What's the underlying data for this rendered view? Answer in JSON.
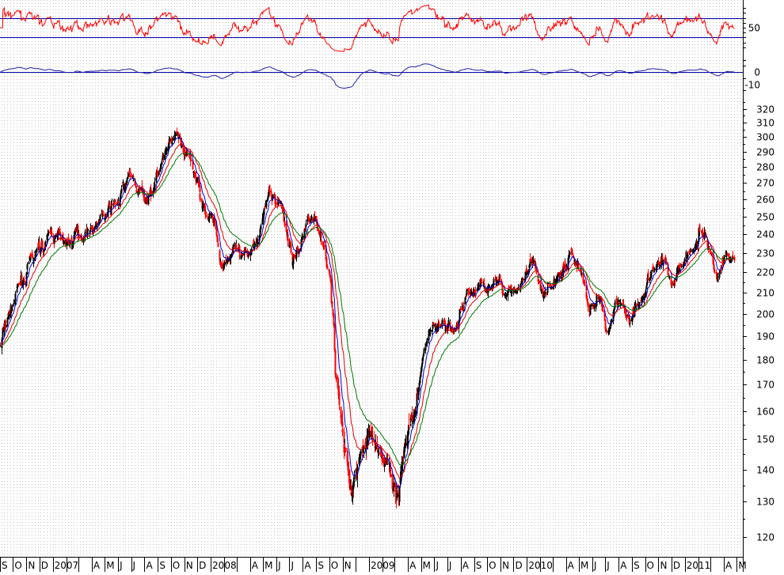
{
  "chart_data": {
    "type": "line",
    "title": "",
    "style": {
      "candle_up_color": "#000000",
      "candle_down_color": "#ff0000",
      "ma_fast_color": "#0000cc",
      "ma_mid_color": "#dd0000",
      "ma_slow_color": "#007700",
      "rsi_color": "#ff0000",
      "momentum_color": "#2222aa",
      "guide_line_color": "#0000aa",
      "grid_color": "#c0c0c0",
      "grid": true
    },
    "price_panel": {
      "scale": "log",
      "ylim": [
        115,
        328
      ],
      "ytick_labels": [
        120,
        130,
        140,
        150,
        160,
        170,
        180,
        190,
        200,
        210,
        220,
        230,
        240,
        250,
        260,
        270,
        280,
        290,
        300,
        310,
        320
      ],
      "close_path": [
        {
          "d": "2006-09-01",
          "v": 186
        },
        {
          "d": "2006-10-01",
          "v": 205
        },
        {
          "d": "2006-11-01",
          "v": 220
        },
        {
          "d": "2006-12-01",
          "v": 232
        },
        {
          "d": "2007-01-01",
          "v": 240
        },
        {
          "d": "2007-02-01",
          "v": 235
        },
        {
          "d": "2007-03-01",
          "v": 240
        },
        {
          "d": "2007-04-01",
          "v": 245
        },
        {
          "d": "2007-05-01",
          "v": 250
        },
        {
          "d": "2007-06-01",
          "v": 258
        },
        {
          "d": "2007-07-01",
          "v": 275
        },
        {
          "d": "2007-07-20",
          "v": 262
        },
        {
          "d": "2007-08-15",
          "v": 265
        },
        {
          "d": "2007-09-15",
          "v": 285
        },
        {
          "d": "2007-10-15",
          "v": 298
        },
        {
          "d": "2007-11-10",
          "v": 285
        },
        {
          "d": "2007-12-10",
          "v": 262
        },
        {
          "d": "2008-01-10",
          "v": 245
        },
        {
          "d": "2008-01-25",
          "v": 225
        },
        {
          "d": "2008-02-20",
          "v": 232
        },
        {
          "d": "2008-03-15",
          "v": 222
        },
        {
          "d": "2008-04-15",
          "v": 240
        },
        {
          "d": "2008-05-15",
          "v": 262
        },
        {
          "d": "2008-06-10",
          "v": 258
        },
        {
          "d": "2008-07-10",
          "v": 225
        },
        {
          "d": "2008-08-01",
          "v": 240
        },
        {
          "d": "2008-08-20",
          "v": 255
        },
        {
          "d": "2008-09-10",
          "v": 240
        },
        {
          "d": "2008-09-30",
          "v": 225
        },
        {
          "d": "2008-10-15",
          "v": 175
        },
        {
          "d": "2008-11-01",
          "v": 150
        },
        {
          "d": "2008-11-20",
          "v": 130
        },
        {
          "d": "2008-12-10",
          "v": 145
        },
        {
          "d": "2009-01-05",
          "v": 152
        },
        {
          "d": "2009-01-25",
          "v": 145
        },
        {
          "d": "2009-02-20",
          "v": 140
        },
        {
          "d": "2009-03-10",
          "v": 130
        },
        {
          "d": "2009-03-25",
          "v": 148
        },
        {
          "d": "2009-04-20",
          "v": 168
        },
        {
          "d": "2009-05-20",
          "v": 190
        },
        {
          "d": "2009-06-20",
          "v": 196
        },
        {
          "d": "2009-07-15",
          "v": 190
        },
        {
          "d": "2009-08-15",
          "v": 210
        },
        {
          "d": "2009-09-15",
          "v": 213
        },
        {
          "d": "2009-10-15",
          "v": 216
        },
        {
          "d": "2009-11-15",
          "v": 211
        },
        {
          "d": "2009-12-15",
          "v": 213
        },
        {
          "d": "2010-01-15",
          "v": 222
        },
        {
          "d": "2010-02-05",
          "v": 205
        },
        {
          "d": "2010-03-15",
          "v": 220
        },
        {
          "d": "2010-04-15",
          "v": 232
        },
        {
          "d": "2010-05-10",
          "v": 215
        },
        {
          "d": "2010-05-25",
          "v": 202
        },
        {
          "d": "2010-06-15",
          "v": 208
        },
        {
          "d": "2010-07-05",
          "v": 190
        },
        {
          "d": "2010-07-25",
          "v": 208
        },
        {
          "d": "2010-08-25",
          "v": 198
        },
        {
          "d": "2010-09-20",
          "v": 210
        },
        {
          "d": "2010-10-20",
          "v": 220
        },
        {
          "d": "2010-11-15",
          "v": 225
        },
        {
          "d": "2010-11-30",
          "v": 215
        },
        {
          "d": "2010-12-20",
          "v": 225
        },
        {
          "d": "2011-01-20",
          "v": 235
        },
        {
          "d": "2011-02-15",
          "v": 242
        },
        {
          "d": "2011-03-15",
          "v": 218
        },
        {
          "d": "2011-04-05",
          "v": 230
        },
        {
          "d": "2011-04-25",
          "v": 225
        }
      ]
    },
    "rsi_panel": {
      "ylim": [
        0,
        100
      ],
      "guide_levels": [
        70,
        30
      ],
      "ytick_labels": [
        50
      ]
    },
    "momentum_panel": {
      "ylim": [
        -20,
        15
      ],
      "guide_levels": [
        0
      ],
      "ytick_labels": [
        0,
        -10
      ]
    },
    "x_axis": {
      "start": "2006-09-01",
      "end": "2011-05-15",
      "month_labels": [
        {
          "d": "2006-09-01",
          "t": "S"
        },
        {
          "d": "2006-10-01",
          "t": "O"
        },
        {
          "d": "2006-11-01",
          "t": "N"
        },
        {
          "d": "2006-12-01",
          "t": "D"
        },
        {
          "d": "2007-01-01",
          "t": "2007"
        },
        {
          "d": "2007-02-01",
          "t": ""
        },
        {
          "d": "2007-03-01",
          "t": ""
        },
        {
          "d": "2007-04-01",
          "t": "A"
        },
        {
          "d": "2007-05-01",
          "t": "M"
        },
        {
          "d": "2007-06-01",
          "t": "J"
        },
        {
          "d": "2007-07-01",
          "t": "J"
        },
        {
          "d": "2007-08-01",
          "t": "A"
        },
        {
          "d": "2007-09-01",
          "t": "S"
        },
        {
          "d": "2007-10-01",
          "t": "O"
        },
        {
          "d": "2007-11-01",
          "t": "N"
        },
        {
          "d": "2007-12-01",
          "t": "D"
        },
        {
          "d": "2008-01-01",
          "t": "2008"
        },
        {
          "d": "2008-02-01",
          "t": ""
        },
        {
          "d": "2008-03-01",
          "t": ""
        },
        {
          "d": "2008-04-01",
          "t": "A"
        },
        {
          "d": "2008-05-01",
          "t": "M"
        },
        {
          "d": "2008-06-01",
          "t": "J"
        },
        {
          "d": "2008-07-01",
          "t": "J"
        },
        {
          "d": "2008-08-01",
          "t": "A"
        },
        {
          "d": "2008-09-01",
          "t": "S"
        },
        {
          "d": "2008-10-01",
          "t": "O"
        },
        {
          "d": "2008-11-01",
          "t": "N"
        },
        {
          "d": "2008-12-01",
          "t": ""
        },
        {
          "d": "2009-01-01",
          "t": "2009"
        },
        {
          "d": "2009-02-01",
          "t": ""
        },
        {
          "d": "2009-03-01",
          "t": ""
        },
        {
          "d": "2009-04-01",
          "t": "A"
        },
        {
          "d": "2009-05-01",
          "t": "M"
        },
        {
          "d": "2009-06-01",
          "t": "J"
        },
        {
          "d": "2009-07-01",
          "t": "J"
        },
        {
          "d": "2009-08-01",
          "t": "A"
        },
        {
          "d": "2009-09-01",
          "t": "S"
        },
        {
          "d": "2009-10-01",
          "t": "O"
        },
        {
          "d": "2009-11-01",
          "t": "N"
        },
        {
          "d": "2009-12-01",
          "t": "D"
        },
        {
          "d": "2010-01-01",
          "t": "2010"
        },
        {
          "d": "2010-02-01",
          "t": ""
        },
        {
          "d": "2010-03-01",
          "t": ""
        },
        {
          "d": "2010-04-01",
          "t": "A"
        },
        {
          "d": "2010-05-01",
          "t": "M"
        },
        {
          "d": "2010-06-01",
          "t": "J"
        },
        {
          "d": "2010-07-01",
          "t": "J"
        },
        {
          "d": "2010-08-01",
          "t": "A"
        },
        {
          "d": "2010-09-01",
          "t": "S"
        },
        {
          "d": "2010-10-01",
          "t": "O"
        },
        {
          "d": "2010-11-01",
          "t": "N"
        },
        {
          "d": "2010-12-01",
          "t": "D"
        },
        {
          "d": "2011-01-01",
          "t": "2011"
        },
        {
          "d": "2011-02-01",
          "t": ""
        },
        {
          "d": "2011-03-01",
          "t": ""
        },
        {
          "d": "2011-04-01",
          "t": "A"
        },
        {
          "d": "2011-05-01",
          "t": "M"
        }
      ]
    }
  }
}
